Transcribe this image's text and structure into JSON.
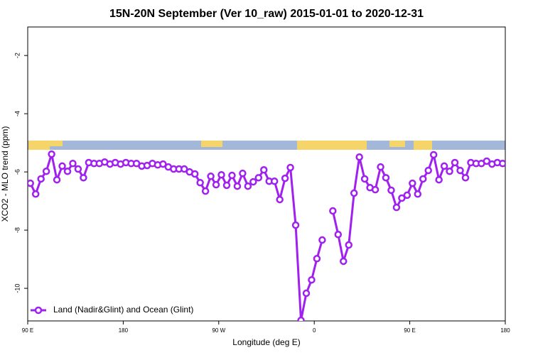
{
  "chart_data": {
    "type": "line",
    "title": "15N-20N September (Ver 10_raw)   2015-01-01 to 2020-12-31",
    "xlabel": "Longitude (deg E)",
    "ylabel": "XCO2 - MLO trend (ppm)",
    "x": [
      92.5,
      97.5,
      102.5,
      107.5,
      112.5,
      117.5,
      122.5,
      127.5,
      132.5,
      137.5,
      142.5,
      147.5,
      152.5,
      157.5,
      162.5,
      167.5,
      172.5,
      177.5,
      182.5,
      187.5,
      192.5,
      197.5,
      202.5,
      207.5,
      212.5,
      217.5,
      222.5,
      227.5,
      232.5,
      237.5,
      242.5,
      247.5,
      252.5,
      257.5,
      262.5,
      267.5,
      272.5,
      277.5,
      282.5,
      287.5,
      292.5,
      297.5,
      302.5,
      307.5,
      312.5,
      317.5,
      322.5,
      327.5,
      332.5,
      337.5,
      342.5,
      347.5,
      352.5,
      357.5,
      362.5,
      367.5,
      372.5,
      377.5,
      382.5,
      387.5,
      392.5,
      397.5,
      402.5,
      407.5,
      412.5,
      417.5,
      422.5,
      427.5,
      432.5,
      437.5,
      442.5,
      447.5,
      452.5,
      457.5,
      462.5,
      467.5,
      472.5,
      477.5,
      482.5,
      487.5,
      492.5,
      497.5,
      502.5,
      507.5,
      512.5,
      517.5,
      522.5,
      527.5,
      532.5,
      537.5
    ],
    "series": [
      {
        "name": "Land (Nadir&Glint) and Ocean (Glint)",
        "color": "#a020f0",
        "values": [
          -6.39,
          -6.76,
          -6.24,
          -5.98,
          -5.39,
          -6.27,
          -5.8,
          -5.98,
          -5.71,
          -5.9,
          -6.2,
          -5.68,
          -5.71,
          -5.71,
          -5.66,
          -5.73,
          -5.68,
          -5.73,
          -5.68,
          -5.71,
          -5.71,
          -5.8,
          -5.78,
          -5.71,
          -5.76,
          -5.73,
          -5.83,
          -5.9,
          -5.9,
          -5.9,
          -6.0,
          -6.07,
          -6.37,
          -6.66,
          -6.15,
          -6.44,
          -6.1,
          -6.46,
          -6.12,
          -6.49,
          -6.05,
          -6.49,
          -6.34,
          -6.2,
          -5.93,
          -6.32,
          -6.32,
          -6.95,
          -6.22,
          -5.85,
          -7.83,
          -11.1,
          -10.17,
          -9.71,
          -8.98,
          -8.34,
          null,
          -7.34,
          -8.15,
          -9.07,
          -8.51,
          -6.73,
          -5.49,
          -6.24,
          -6.54,
          -6.61,
          -5.83,
          -6.2,
          -6.63,
          -7.22,
          -6.9,
          -6.8,
          -6.39,
          -6.76,
          -6.24,
          -5.95,
          -5.41,
          -6.27,
          -5.8,
          -5.98,
          -5.68,
          -5.95,
          -6.2,
          -5.68,
          -5.71,
          -5.71,
          -5.63,
          -5.73,
          -5.68,
          -5.71
        ]
      }
    ],
    "xlim": [
      90,
      540
    ],
    "xticks": [
      {
        "value": 90,
        "label": "90 E"
      },
      180,
      {
        "value": 270,
        "label": "90 W"
      },
      {
        "value": 360,
        "label": "0"
      },
      {
        "value": 450,
        "label": "90 E"
      },
      {
        "value": 540,
        "label": "180"
      }
    ],
    "ylim": [
      -11.12,
      -1.02
    ],
    "yticks": [
      -10,
      -8,
      -6,
      -4,
      -2
    ],
    "legend": "bottom-left"
  }
}
